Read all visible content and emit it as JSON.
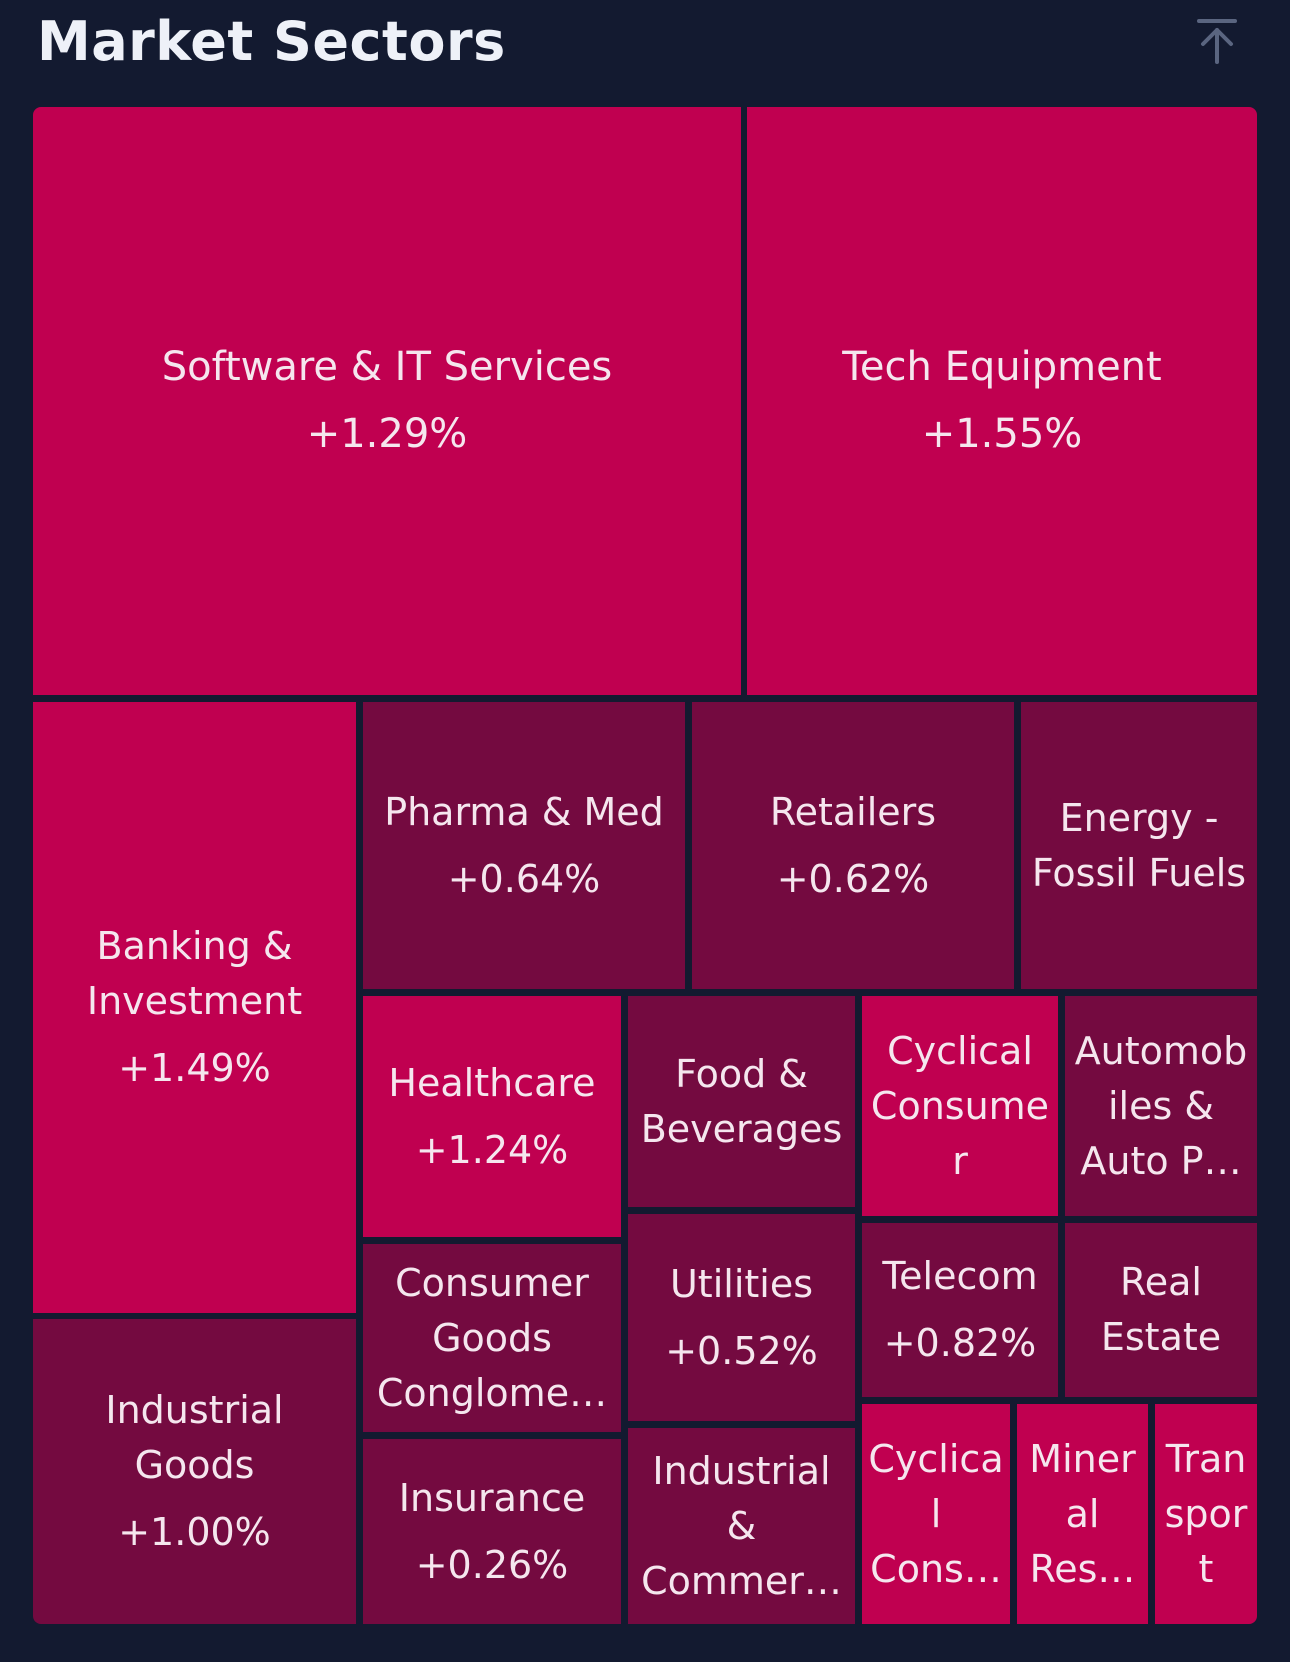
{
  "header": {
    "title": "Market Sectors",
    "collapse_icon": "collapse-to-top-icon"
  },
  "colors": {
    "background": "#131a30",
    "strong_positive": "#c00050",
    "mild_positive": "#740a40",
    "text": "#f5e6ee"
  },
  "sectors": [
    {
      "name": "Software & IT Services",
      "change": "+1.29%",
      "tone": "strong"
    },
    {
      "name": "Tech Equipment",
      "change": "+1.55%",
      "tone": "strong"
    },
    {
      "name": "Banking &\nInvestment",
      "change": "+1.49%",
      "tone": "strong"
    },
    {
      "name": "Pharma & Med",
      "change": "+0.64%",
      "tone": "mild"
    },
    {
      "name": "Retailers",
      "change": "+0.62%",
      "tone": "mild"
    },
    {
      "name": "Energy -\nFossil Fuels",
      "change": "",
      "tone": "mild"
    },
    {
      "name": "Healthcare",
      "change": "+1.24%",
      "tone": "strong"
    },
    {
      "name": "Food &\nBeverages",
      "change": "",
      "tone": "mild"
    },
    {
      "name": "Cyclical\nConsume\nr",
      "change": "",
      "tone": "strong"
    },
    {
      "name": "Automob\niles &\nAuto P…",
      "change": "",
      "tone": "mild"
    },
    {
      "name": "Industrial\nGoods",
      "change": "+1.00%",
      "tone": "mild"
    },
    {
      "name": "Consumer\nGoods\nConglome…",
      "change": "",
      "tone": "mild"
    },
    {
      "name": "Utilities",
      "change": "+0.52%",
      "tone": "mild"
    },
    {
      "name": "Telecom",
      "change": "+0.82%",
      "tone": "mild"
    },
    {
      "name": "Real\nEstate",
      "change": "",
      "tone": "mild"
    },
    {
      "name": "Insurance",
      "change": "+0.26%",
      "tone": "mild"
    },
    {
      "name": "Industrial\n&\nCommer…",
      "change": "",
      "tone": "mild"
    },
    {
      "name": "Cyclica\nl\nCons…",
      "change": "",
      "tone": "strong"
    },
    {
      "name": "Miner\nal\nRes…",
      "change": "",
      "tone": "strong"
    },
    {
      "name": "Tran\nspor\nt",
      "change": "",
      "tone": "strong"
    }
  ]
}
